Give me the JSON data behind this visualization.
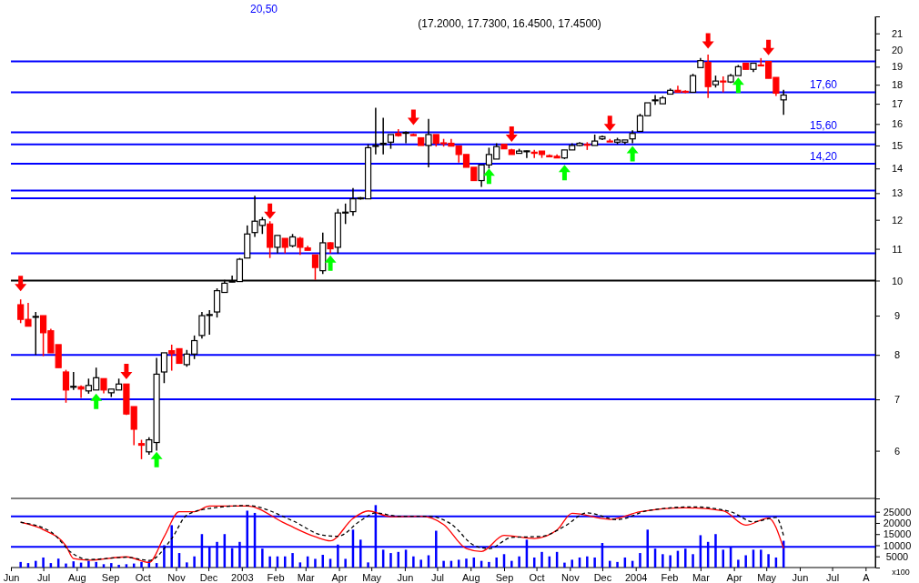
{
  "chart_data": [
    {
      "type": "candlestick",
      "title": "(17.2000, 17.7300, 16.4500, 17.4500)",
      "annotations": [
        "20,50"
      ],
      "log": "y",
      "tick_labels": "y",
      "xlim": [
        "2002-06-01",
        "2004-08-10"
      ],
      "ylim": [
        5.2,
        22.1
      ],
      "yticks": [
        6,
        7,
        8,
        9,
        10,
        11,
        12,
        13,
        14,
        15,
        16,
        17,
        18,
        19,
        20,
        21
      ],
      "x": [
        "2002-06-10",
        "2002-06-17",
        "2002-06-24",
        "2002-07-01",
        "2002-07-08",
        "2002-07-15",
        "2002-07-22",
        "2002-07-29",
        "2002-08-05",
        "2002-08-12",
        "2002-08-19",
        "2002-08-26",
        "2002-09-02",
        "2002-09-09",
        "2002-09-16",
        "2002-09-23",
        "2002-09-30",
        "2002-10-07",
        "2002-10-14",
        "2002-10-21",
        "2002-10-28",
        "2002-11-04",
        "2002-11-11",
        "2002-11-18",
        "2002-11-25",
        "2002-12-02",
        "2002-12-09",
        "2002-12-16",
        "2002-12-23",
        "2002-12-30",
        "2003-01-06",
        "2003-01-13",
        "2003-01-20",
        "2003-01-27",
        "2003-02-03",
        "2003-02-10",
        "2003-02-17",
        "2003-02-24",
        "2003-03-03",
        "2003-03-10",
        "2003-03-17",
        "2003-03-24",
        "2003-03-31",
        "2003-04-07",
        "2003-04-14",
        "2003-04-21",
        "2003-04-28",
        "2003-05-05",
        "2003-05-12",
        "2003-05-19",
        "2003-05-26",
        "2003-06-02",
        "2003-06-09",
        "2003-06-16",
        "2003-06-23",
        "2003-06-30",
        "2003-07-07",
        "2003-07-14",
        "2003-07-21",
        "2003-07-28",
        "2003-08-04",
        "2003-08-11",
        "2003-08-18",
        "2003-08-25",
        "2003-09-01",
        "2003-09-08",
        "2003-09-15",
        "2003-09-22",
        "2003-09-29",
        "2003-10-06",
        "2003-10-13",
        "2003-10-20",
        "2003-10-27",
        "2003-11-03",
        "2003-11-10",
        "2003-11-17",
        "2003-11-24",
        "2003-12-01",
        "2003-12-08",
        "2003-12-15",
        "2003-12-22",
        "2003-12-29",
        "2004-01-05",
        "2004-01-12",
        "2004-01-19",
        "2004-01-26",
        "2004-02-02",
        "2004-02-09",
        "2004-02-16",
        "2004-02-23",
        "2004-03-01",
        "2004-03-08",
        "2004-03-15",
        "2004-03-22",
        "2004-03-29",
        "2004-04-05",
        "2004-04-12",
        "2004-04-19",
        "2004-04-26",
        "2004-05-03",
        "2004-05-10",
        "2004-05-17"
      ],
      "ohlc": [
        [
          9.3,
          9.45,
          8.8,
          8.9
        ],
        [
          8.9,
          9.35,
          8.72,
          8.72
        ],
        [
          8.97,
          9.1,
          8.0,
          8.98
        ],
        [
          9.0,
          9.0,
          7.97,
          8.55
        ],
        [
          8.6,
          8.65,
          8.05,
          8.05
        ],
        [
          8.25,
          8.25,
          7.7,
          7.7
        ],
        [
          7.6,
          7.65,
          6.93,
          7.2
        ],
        [
          7.26,
          7.6,
          7.2,
          7.28
        ],
        [
          7.27,
          7.3,
          7.03,
          7.22
        ],
        [
          7.18,
          7.45,
          7.12,
          7.3
        ],
        [
          7.2,
          7.7,
          7.2,
          7.47
        ],
        [
          7.45,
          7.45,
          7.13,
          7.2
        ],
        [
          7.14,
          7.22,
          7.05,
          7.22
        ],
        [
          7.2,
          7.45,
          7.2,
          7.33
        ],
        [
          7.33,
          7.33,
          6.68,
          6.7
        ],
        [
          6.85,
          6.85,
          6.1,
          6.4
        ],
        [
          6.13,
          6.2,
          5.85,
          6.1
        ],
        [
          5.98,
          6.25,
          5.93,
          6.2
        ],
        [
          6.15,
          7.93,
          6.0,
          7.55
        ],
        [
          7.6,
          8.05,
          7.35,
          8.05
        ],
        [
          8.1,
          8.25,
          7.63,
          8.03
        ],
        [
          8.15,
          8.15,
          7.8,
          7.8
        ],
        [
          7.77,
          8.12,
          7.72,
          8.02
        ],
        [
          8.02,
          8.48,
          7.9,
          8.35
        ],
        [
          8.48,
          9.1,
          8.4,
          9.0
        ],
        [
          9.02,
          9.15,
          8.5,
          9.03
        ],
        [
          9.1,
          9.77,
          8.95,
          9.7
        ],
        [
          9.65,
          10.02,
          9.65,
          9.92
        ],
        [
          9.97,
          10.15,
          9.95,
          9.98
        ],
        [
          9.97,
          10.7,
          9.97,
          10.66
        ],
        [
          10.7,
          11.8,
          10.7,
          11.5
        ],
        [
          11.55,
          12.9,
          11.4,
          11.95
        ],
        [
          11.8,
          12.1,
          11.5,
          12.0
        ],
        [
          11.85,
          11.95,
          10.7,
          11.05
        ],
        [
          11.05,
          11.45,
          10.85,
          11.45
        ],
        [
          11.35,
          11.35,
          10.85,
          11.05
        ],
        [
          11.1,
          11.5,
          11.05,
          11.4
        ],
        [
          11.35,
          11.4,
          10.8,
          11.05
        ],
        [
          11.03,
          11.1,
          10.95,
          10.95
        ],
        [
          10.8,
          10.8,
          10.02,
          10.4
        ],
        [
          10.3,
          11.55,
          10.2,
          11.2
        ],
        [
          11.2,
          11.22,
          10.85,
          11.0
        ],
        [
          11.05,
          12.4,
          10.85,
          12.25
        ],
        [
          12.26,
          12.6,
          11.85,
          12.28
        ],
        [
          12.3,
          13.2,
          12.15,
          12.78
        ],
        [
          12.78,
          12.85,
          12.75,
          12.82
        ],
        [
          12.78,
          15.05,
          12.78,
          14.9
        ],
        [
          14.98,
          16.8,
          14.6,
          15.0
        ],
        [
          15.05,
          16.3,
          14.6,
          15.1
        ],
        [
          15.15,
          15.5,
          14.85,
          15.5
        ],
        [
          15.55,
          15.75,
          15.4,
          15.45
        ],
        [
          15.59,
          15.65,
          15.1,
          15.6
        ],
        [
          15.5,
          15.55,
          15.45,
          15.45
        ],
        [
          15.35,
          15.35,
          15.0,
          15.0
        ],
        [
          15.0,
          16.25,
          14.05,
          15.5
        ],
        [
          15.5,
          15.5,
          14.95,
          15.1
        ],
        [
          15.12,
          15.3,
          14.95,
          15.08
        ],
        [
          15.1,
          15.3,
          14.97,
          14.97
        ],
        [
          14.98,
          14.98,
          14.25,
          14.6
        ],
        [
          14.6,
          14.6,
          14.05,
          14.05
        ],
        [
          14.05,
          14.05,
          13.5,
          13.5
        ],
        [
          13.5,
          14.15,
          13.25,
          14.15
        ],
        [
          14.15,
          14.9,
          14.0,
          14.6
        ],
        [
          14.4,
          15.1,
          14.4,
          14.95
        ],
        [
          15.05,
          15.05,
          14.85,
          14.85
        ],
        [
          14.8,
          14.85,
          14.6,
          14.6
        ],
        [
          14.65,
          14.85,
          14.65,
          14.75
        ],
        [
          14.74,
          14.77,
          14.45,
          14.76
        ],
        [
          14.7,
          14.8,
          14.45,
          14.65
        ],
        [
          14.75,
          14.75,
          14.45,
          14.6
        ],
        [
          14.55,
          14.6,
          14.5,
          14.5
        ],
        [
          14.52,
          14.6,
          14.45,
          14.45
        ],
        [
          14.45,
          14.8,
          14.4,
          14.8
        ],
        [
          14.8,
          15.1,
          14.8,
          15.0
        ],
        [
          15.0,
          15.15,
          14.98,
          15.1
        ],
        [
          15.05,
          15.15,
          14.8,
          15.02
        ],
        [
          15.0,
          15.5,
          15.0,
          15.2
        ],
        [
          15.3,
          15.45,
          15.25,
          15.4
        ],
        [
          15.2,
          15.3,
          15.17,
          15.17
        ],
        [
          15.15,
          15.35,
          15.05,
          15.25
        ],
        [
          15.15,
          15.25,
          15.05,
          15.25
        ],
        [
          15.3,
          15.7,
          15.1,
          15.55
        ],
        [
          15.65,
          16.5,
          15.65,
          16.4
        ],
        [
          16.4,
          17.05,
          16.4,
          17.05
        ],
        [
          17.18,
          17.45,
          16.95,
          17.2
        ],
        [
          17.0,
          17.4,
          17.0,
          17.3
        ],
        [
          17.5,
          17.8,
          17.5,
          17.7
        ],
        [
          17.7,
          17.95,
          17.6,
          17.6
        ],
        [
          17.65,
          17.7,
          17.55,
          17.6
        ],
        [
          17.6,
          18.6,
          17.6,
          18.5
        ],
        [
          18.95,
          19.5,
          18.95,
          19.35
        ],
        [
          19.25,
          19.7,
          17.3,
          17.9
        ],
        [
          18.0,
          18.5,
          17.85,
          18.2
        ],
        [
          18.2,
          18.45,
          17.6,
          18.15
        ],
        [
          18.15,
          18.6,
          18.1,
          18.5
        ],
        [
          18.5,
          19.1,
          18.5,
          19.0
        ],
        [
          19.2,
          19.2,
          18.85,
          18.85
        ],
        [
          18.85,
          19.2,
          18.7,
          19.2
        ],
        [
          19.1,
          19.5,
          19.05,
          19.05
        ],
        [
          19.3,
          19.3,
          18.35,
          18.35
        ],
        [
          18.4,
          18.4,
          17.4,
          17.55
        ],
        [
          17.2,
          17.73,
          16.45,
          17.45
        ]
      ],
      "series": [
        {
          "type": "scatter",
          "color": "#ff0000",
          "marker": "triangle",
          "x": [
            "2002-06-10",
            "2002-09-16",
            "2003-01-27",
            "2003-06-09",
            "2003-09-08",
            "2003-12-08",
            "2004-03-08",
            "2004-05-03"
          ],
          "values": [
            9.9,
            7.6,
            12.3,
            16.3,
            15.5,
            16.0,
            20.5,
            20.1
          ]
        },
        {
          "type": "scatter",
          "color": "#00ff00",
          "marker": "triangle",
          "x": [
            "2002-08-19",
            "2002-10-14",
            "2003-03-24",
            "2003-08-18",
            "2003-10-27",
            "2003-12-29",
            "2004-04-05"
          ],
          "values": [
            6.97,
            5.85,
            10.55,
            13.7,
            13.85,
            14.65,
            18.0
          ]
        }
      ],
      "ref_lines": [
        {
          "axis": "y",
          "value": 7.0,
          "color": "#0000ff"
        },
        {
          "axis": "y",
          "value": 8.0,
          "color": "#0000ff"
        },
        {
          "axis": "y",
          "value": 10.0,
          "color": "#000000"
        },
        {
          "axis": "y",
          "value": 10.85,
          "color": "#0000ff"
        },
        {
          "axis": "y",
          "value": 12.8,
          "color": "#0000ff"
        },
        {
          "axis": "y",
          "value": 13.1,
          "color": "#0000ff"
        },
        {
          "axis": "y",
          "value": 14.2,
          "color": "#0000ff",
          "label": "14,20"
        },
        {
          "axis": "y",
          "value": 15.05,
          "color": "#0000ff"
        },
        {
          "axis": "y",
          "value": 15.6,
          "color": "#0000ff",
          "label": "15,60"
        },
        {
          "axis": "y",
          "value": 17.6,
          "color": "#0000ff",
          "label": "17,60"
        },
        {
          "axis": "y",
          "value": 19.3,
          "color": "#0000ff"
        }
      ]
    },
    {
      "type": "bar",
      "ylabel": "x100",
      "xlim": [
        "2002-06-01",
        "2004-08-10"
      ],
      "ylim": [
        0,
        31000
      ],
      "yticks": [
        5000,
        10000,
        15000,
        20000,
        25000
      ],
      "xticks": [
        {
          "value": "2002-06-01",
          "label": "Jun"
        },
        {
          "value": "2002-07-01",
          "label": "Jul"
        },
        {
          "value": "2002-08-01",
          "label": "Aug"
        },
        {
          "value": "2002-09-01",
          "label": "Sep"
        },
        {
          "value": "2002-10-01",
          "label": "Oct"
        },
        {
          "value": "2002-11-01",
          "label": "Nov"
        },
        {
          "value": "2002-12-01",
          "label": "Dec"
        },
        {
          "value": "2003-01-01",
          "label": "2003"
        },
        {
          "value": "2003-02-01",
          "label": "Feb"
        },
        {
          "value": "2003-03-01",
          "label": "Mar"
        },
        {
          "value": "2003-04-01",
          "label": "Apr"
        },
        {
          "value": "2003-05-01",
          "label": "May"
        },
        {
          "value": "2003-06-01",
          "label": "Jun"
        },
        {
          "value": "2003-07-01",
          "label": "Jul"
        },
        {
          "value": "2003-08-01",
          "label": "Aug"
        },
        {
          "value": "2003-09-01",
          "label": "Sep"
        },
        {
          "value": "2003-10-01",
          "label": "Oct"
        },
        {
          "value": "2003-11-01",
          "label": "Nov"
        },
        {
          "value": "2003-12-01",
          "label": "Dec"
        },
        {
          "value": "2004-01-01",
          "label": "2004"
        },
        {
          "value": "2004-02-01",
          "label": "Feb"
        },
        {
          "value": "2004-03-01",
          "label": "Mar"
        },
        {
          "value": "2004-04-01",
          "label": "Apr"
        },
        {
          "value": "2004-05-01",
          "label": "May"
        },
        {
          "value": "2004-06-01",
          "label": "Jun"
        },
        {
          "value": "2004-07-01",
          "label": "Jul"
        },
        {
          "value": "2004-08-01",
          "label": "A"
        }
      ],
      "x": [
        "2002-06-10",
        "2002-06-17",
        "2002-06-24",
        "2002-07-01",
        "2002-07-08",
        "2002-07-15",
        "2002-07-22",
        "2002-07-29",
        "2002-08-05",
        "2002-08-12",
        "2002-08-19",
        "2002-08-26",
        "2002-09-02",
        "2002-09-09",
        "2002-09-16",
        "2002-09-23",
        "2002-09-30",
        "2002-10-07",
        "2002-10-14",
        "2002-10-21",
        "2002-10-28",
        "2002-11-04",
        "2002-11-11",
        "2002-11-18",
        "2002-11-25",
        "2002-12-02",
        "2002-12-09",
        "2002-12-16",
        "2002-12-23",
        "2002-12-30",
        "2003-01-06",
        "2003-01-13",
        "2003-01-20",
        "2003-01-27",
        "2003-02-03",
        "2003-02-10",
        "2003-02-17",
        "2003-02-24",
        "2003-03-03",
        "2003-03-10",
        "2003-03-17",
        "2003-03-24",
        "2003-03-31",
        "2003-04-07",
        "2003-04-14",
        "2003-04-21",
        "2003-04-28",
        "2003-05-05",
        "2003-05-12",
        "2003-05-19",
        "2003-05-26",
        "2003-06-02",
        "2003-06-09",
        "2003-06-16",
        "2003-06-23",
        "2003-06-30",
        "2003-07-07",
        "2003-07-14",
        "2003-07-21",
        "2003-07-28",
        "2003-08-04",
        "2003-08-11",
        "2003-08-18",
        "2003-08-25",
        "2003-09-01",
        "2003-09-08",
        "2003-09-15",
        "2003-09-22",
        "2003-09-29",
        "2003-10-06",
        "2003-10-13",
        "2003-10-20",
        "2003-10-27",
        "2003-11-03",
        "2003-11-10",
        "2003-11-17",
        "2003-11-24",
        "2003-12-01",
        "2003-12-08",
        "2003-12-15",
        "2003-12-22",
        "2003-12-29",
        "2004-01-05",
        "2004-01-12",
        "2004-01-19",
        "2004-01-26",
        "2004-02-02",
        "2004-02-09",
        "2004-02-16",
        "2004-02-23",
        "2004-03-01",
        "2004-03-08",
        "2004-03-15",
        "2004-03-22",
        "2004-03-29",
        "2004-04-05",
        "2004-04-12",
        "2004-04-19",
        "2004-04-26",
        "2004-05-03",
        "2004-05-10",
        "2004-05-17"
      ],
      "series": [
        {
          "type": "bar",
          "color": "#0000ff",
          "values": [
            2500,
            2000,
            3000,
            4500,
            2000,
            4000,
            1800,
            2800,
            2200,
            3000,
            2500,
            1500,
            2000,
            1200,
            1500,
            1800,
            2500,
            3000,
            2000,
            10000,
            19000,
            6500,
            2300,
            5000,
            15000,
            9000,
            11500,
            15000,
            8700,
            11500,
            25500,
            24500,
            8500,
            5000,
            5000,
            5000,
            6500,
            2300,
            5000,
            3900,
            5700,
            3900,
            10300,
            3900,
            17000,
            12500,
            2300,
            28000,
            8000,
            6500,
            7000,
            8000,
            5000,
            3500,
            5500,
            16500,
            3000,
            3000,
            3500,
            4000,
            4500,
            3000,
            2500,
            4500,
            6000,
            3000,
            5000,
            12500,
            4500,
            7000,
            5000,
            7000,
            2200,
            3500,
            4500,
            5000,
            4500,
            11000,
            3000,
            2500,
            4500,
            3000,
            6500,
            17000,
            8500,
            6000,
            5500,
            7500,
            8500,
            6000,
            14500,
            11500,
            15000,
            8000,
            9000,
            3500,
            5500,
            8000,
            8000,
            6000,
            4500,
            12000
          ]
        },
        {
          "type": "line",
          "color": "#ff0000",
          "x": [
            "2002-06-10",
            "2002-07-01",
            "2002-07-22",
            "2002-07-29",
            "2002-08-12",
            "2002-09-16",
            "2002-10-07",
            "2002-10-21",
            "2002-11-04",
            "2002-11-18",
            "2002-12-02",
            "2003-01-06",
            "2003-02-10",
            "2003-03-10",
            "2003-03-24",
            "2003-04-14",
            "2003-04-28",
            "2003-05-19",
            "2003-06-16",
            "2003-07-07",
            "2003-07-28",
            "2003-08-11",
            "2003-09-01",
            "2003-09-29",
            "2003-10-20",
            "2003-11-03",
            "2003-12-08",
            "2004-01-05",
            "2004-02-16",
            "2004-03-22",
            "2004-04-12",
            "2004-05-03",
            "2004-05-17"
          ],
          "values": [
            20300,
            17000,
            9700,
            4000,
            3300,
            4800,
            2300,
            13800,
            25000,
            25000,
            27600,
            27600,
            19800,
            13800,
            12000,
            22000,
            25400,
            22800,
            23000,
            19300,
            8500,
            7200,
            14400,
            13000,
            16800,
            24300,
            21600,
            25000,
            26800,
            25400,
            19000,
            22200,
            8500
          ]
        },
        {
          "type": "line",
          "color": "#000000",
          "line_style": "dashed",
          "x": [
            "2002-06-10",
            "2002-07-08",
            "2002-07-29",
            "2002-08-12",
            "2002-09-16",
            "2002-10-07",
            "2002-10-28",
            "2002-11-11",
            "2002-12-02",
            "2003-01-06",
            "2003-02-17",
            "2003-03-17",
            "2003-03-31",
            "2003-04-21",
            "2003-05-05",
            "2003-05-26",
            "2003-06-23",
            "2003-07-14",
            "2003-08-04",
            "2003-08-18",
            "2003-09-08",
            "2003-10-06",
            "2003-10-27",
            "2003-11-17",
            "2003-12-15",
            "2004-01-12",
            "2004-02-23",
            "2004-03-29",
            "2004-04-19",
            "2004-05-10",
            "2004-05-17"
          ],
          "values": [
            20300,
            16000,
            6000,
            3600,
            4600,
            3200,
            13000,
            23500,
            26500,
            27800,
            21000,
            14500,
            14000,
            21000,
            24500,
            23000,
            23000,
            19500,
            10000,
            8500,
            13500,
            14000,
            18500,
            24500,
            21500,
            25500,
            27200,
            25000,
            20500,
            22500,
            14300
          ]
        }
      ],
      "ref_lines": [
        {
          "axis": "y",
          "value": 22900,
          "color": "#0000ff"
        },
        {
          "axis": "y",
          "value": 9300,
          "color": "#0000ff"
        }
      ]
    }
  ]
}
